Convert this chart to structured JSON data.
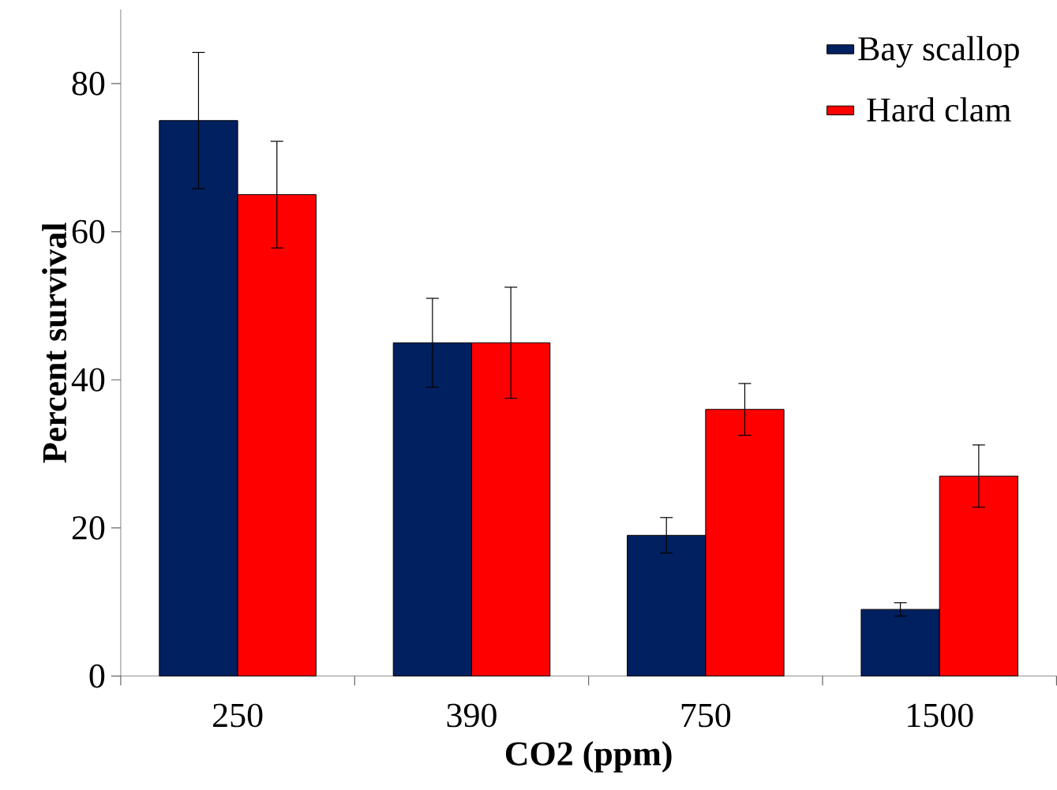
{
  "chart_data": {
    "type": "bar",
    "xlabel": "CO2 (ppm)",
    "ylabel": "Percent survival",
    "categories": [
      "250",
      "390",
      "750",
      "1500"
    ],
    "series": [
      {
        "name": "Bay scallop",
        "color": "#002060",
        "values": [
          75,
          45,
          19,
          9
        ],
        "errors": [
          9.2,
          6,
          2.4,
          0.9
        ]
      },
      {
        "name": "Hard clam",
        "color": "#ff0000",
        "values": [
          65,
          45,
          36,
          27
        ],
        "errors": [
          7.2,
          7.5,
          3.5,
          4.2
        ]
      }
    ],
    "ylim": [
      0,
      90
    ],
    "yticks": [
      0,
      20,
      40,
      60,
      80
    ],
    "legend": "top right",
    "grid": false
  }
}
